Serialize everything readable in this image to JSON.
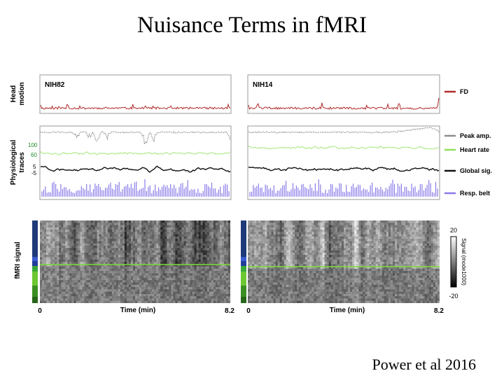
{
  "slide": {
    "title": "Nuisance Terms in fMRI",
    "citation": "Power et al 2016"
  },
  "panels": [
    {
      "subject": "NIH82",
      "time_start": "0",
      "time_end": "8.2",
      "time_label": "Time (min)"
    },
    {
      "subject": "NIH14",
      "time_start": "0",
      "time_end": "8.2",
      "time_label": "Time (min)"
    }
  ],
  "row_labels": {
    "head_motion_line1": "Head",
    "head_motion_line2": "motion",
    "physio_line1": "Physiological",
    "physio_line2": "traces",
    "fmri": "fMRI signal"
  },
  "physio_ticks": {
    "hr_high": "100",
    "hr_low": "60",
    "gs_high": "5",
    "gs_low": "-5"
  },
  "colorbar": {
    "max": "20",
    "min": "-20",
    "label": "Signal (mode1000)"
  },
  "chart_data": {
    "type": "line",
    "x_label": "Time (min)",
    "x_range": [
      0,
      8.2
    ],
    "series": [
      {
        "name": "FD",
        "color": "#b02a2a"
      },
      {
        "name": "Peak amp.",
        "color": "#8c8c8c"
      },
      {
        "name": "Heart rate",
        "color": "#8ee05a"
      },
      {
        "name": "Global sig.",
        "color": "#111111"
      },
      {
        "name": "Resp. belt",
        "color": "#8a7ce8"
      }
    ],
    "ticks": {
      "heart_rate": [
        60,
        100
      ],
      "global_signal": [
        -5,
        5
      ]
    },
    "colorbar_range": [
      -20,
      20
    ],
    "colorbar_label": "Signal (mode1000)"
  }
}
